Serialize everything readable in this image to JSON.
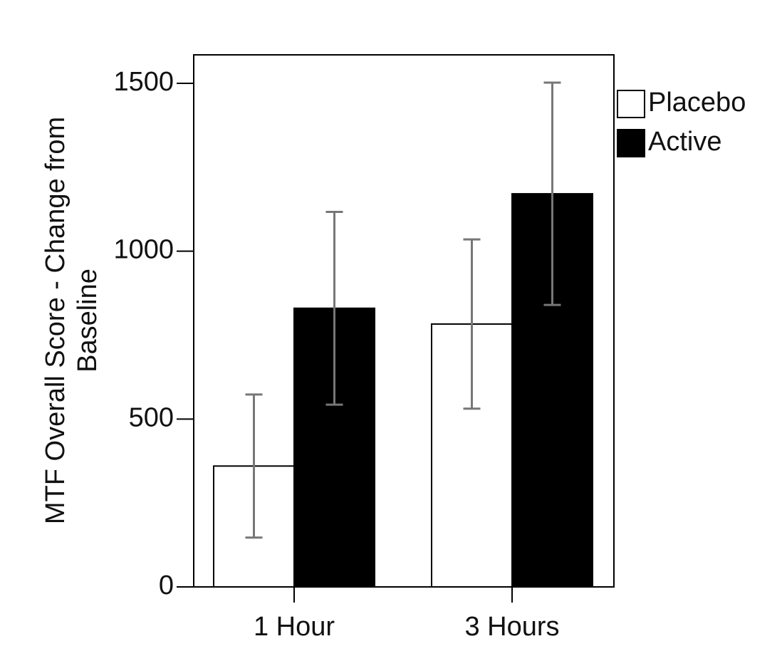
{
  "chart_data": {
    "type": "bar",
    "ylabel": [
      "MTF Overall Score - Change from",
      "Baseline"
    ],
    "categories": [
      "1 Hour",
      "3 Hours"
    ],
    "series": [
      {
        "name": "Placebo",
        "color": "#ffffff",
        "values": [
          360,
          783
        ],
        "errors": [
          213,
          252
        ]
      },
      {
        "name": "Active",
        "color": "#000000",
        "values": [
          830,
          1171
        ],
        "errors": [
          287,
          331
        ]
      }
    ],
    "ylim": [
      0,
      1500
    ],
    "yticks": [
      0,
      500,
      1000,
      1500
    ],
    "legend": "right",
    "error_color": "#777777"
  }
}
